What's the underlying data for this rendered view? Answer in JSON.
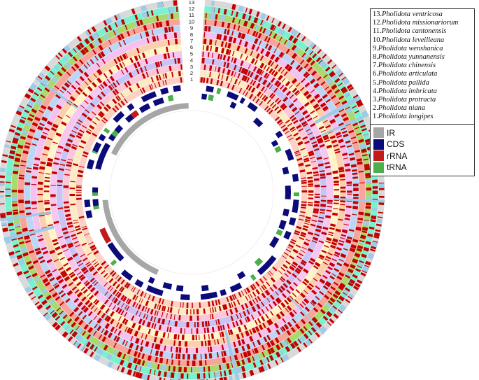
{
  "species": [
    {
      "num": "13.",
      "name": "Pholidota ventricosa"
    },
    {
      "num": "12.",
      "name": "Pholidota missionariorum"
    },
    {
      "num": "11.",
      "name": "Pholidota cantonensis"
    },
    {
      "num": "10.",
      "name": "Pholidota leveilleana"
    },
    {
      "num": "9.",
      "name": "Pholidota wenshanica"
    },
    {
      "num": "8.",
      "name": "Pholidota yunnanensis"
    },
    {
      "num": "7.",
      "name": "Pholidota chinensis"
    },
    {
      "num": "6.",
      "name": "Pholidota articulata"
    },
    {
      "num": "5.",
      "name": "Pholidota pallida"
    },
    {
      "num": "4.",
      "name": "Pholidota imbricata"
    },
    {
      "num": "3.",
      "name": "Pholidota protracta"
    },
    {
      "num": "2.",
      "name": "Pholidota niana"
    },
    {
      "num": "1.",
      "name": "Pholidota longipes"
    }
  ],
  "ring_numbers": [
    "1",
    "2",
    "3",
    "4",
    "5",
    "6",
    "7",
    "8",
    "9",
    "10",
    "11",
    "12",
    "13"
  ],
  "features": [
    {
      "label": "IR",
      "color": "#a6a6a6"
    },
    {
      "label": "CDS",
      "color": "#0b0b7a"
    },
    {
      "label": "rRNA",
      "color": "#c41a1a"
    },
    {
      "label": "tRNA",
      "color": "#4cae4c"
    }
  ],
  "ring_colors": [
    "#fdd2c4",
    "#fdebc4",
    "#fbc7d9",
    "#c9c4f5",
    "#f6c7f1",
    "#fff5c8",
    "#fbd0ae",
    "#f5c1ef",
    "#bcd6f5",
    "#f7a49a",
    "#a9d96f",
    "#78f2cf",
    "#d9d9d9"
  ],
  "hit_color": "#c40000",
  "gap_color": "#9ecbe8"
}
